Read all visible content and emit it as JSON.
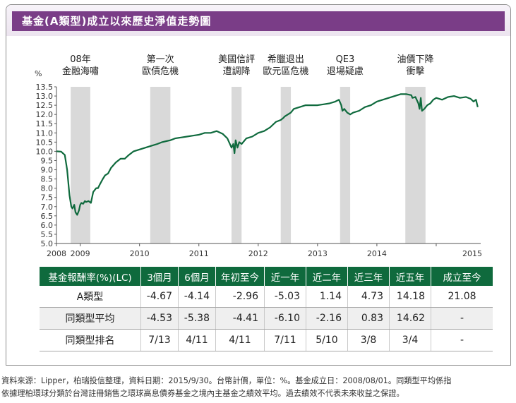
{
  "title": "基金(A類型)成立以來歷史淨值走勢圖",
  "chart_data": {
    "type": "line",
    "title": "基金(A類型)成立以來歷史淨值走勢圖",
    "y_unit": "%",
    "ylim": [
      5.0,
      13.5
    ],
    "y_ticks": [
      "13.5",
      "13.0",
      "12.5",
      "12.0",
      "11.5",
      "11.0",
      "10.5",
      "10.0",
      "9.5",
      "9.0",
      "8.5",
      "8.0",
      "7.5",
      "7.0",
      "6.5",
      "6.0",
      "5.5",
      "5.0"
    ],
    "x_ticks": [
      "2008",
      "2009",
      "2010",
      "2011",
      "2012",
      "2013",
      "2014",
      "2015"
    ],
    "xlim": [
      2008.6,
      2015.75
    ],
    "grid": false,
    "line_color": "#0f6a3d",
    "band_color": "#d9d9d9",
    "events": [
      {
        "lines": [
          "08年",
          "金融海嘯"
        ],
        "start": 2008.84,
        "end": 2009.17
      },
      {
        "lines": [
          "第一次",
          "歐債危機"
        ],
        "start": 2010.18,
        "end": 2010.52
      },
      {
        "lines": [
          "美國信評",
          "遭調降"
        ],
        "start": 2011.55,
        "end": 2011.72
      },
      {
        "lines": [
          "希臘退出",
          "歐元區危機"
        ],
        "start": 2012.38,
        "end": 2012.55
      },
      {
        "lines": [
          "QE3",
          "退場疑慮"
        ],
        "start": 2013.38,
        "end": 2013.55
      },
      {
        "lines": [
          "油價下降",
          "衝擊"
        ],
        "start": 2014.48,
        "end": 2014.82
      }
    ],
    "series": [
      {
        "x": [
          2008.6,
          2008.68,
          2008.74,
          2008.78,
          2008.8,
          2008.82,
          2008.85,
          2008.87,
          2008.9,
          2008.92,
          2008.95,
          2008.98,
          2009.0,
          2009.02,
          2009.05,
          2009.08,
          2009.1,
          2009.14,
          2009.18,
          2009.22,
          2009.27,
          2009.3,
          2009.33,
          2009.38,
          2009.42,
          2009.47,
          2009.52,
          2009.6,
          2009.68,
          2009.75,
          2009.82,
          2009.9,
          2010.0,
          2010.1,
          2010.2,
          2010.3,
          2010.38,
          2010.45,
          2010.52,
          2010.6,
          2010.7,
          2010.8,
          2010.9,
          2011.0,
          2011.1,
          2011.2,
          2011.3,
          2011.4,
          2011.48,
          2011.55,
          2011.58,
          2011.6,
          2011.62,
          2011.65,
          2011.68,
          2011.72,
          2011.8,
          2011.9,
          2012.0,
          2012.1,
          2012.2,
          2012.3,
          2012.38,
          2012.42,
          2012.45,
          2012.5,
          2012.55,
          2012.6,
          2012.7,
          2012.8,
          2012.9,
          2013.0,
          2013.1,
          2013.2,
          2013.3,
          2013.36,
          2013.4,
          2013.42,
          2013.45,
          2013.5,
          2013.55,
          2013.6,
          2013.7,
          2013.8,
          2013.9,
          2014.0,
          2014.1,
          2014.2,
          2014.3,
          2014.4,
          2014.5,
          2014.58,
          2014.6,
          2014.65,
          2014.7,
          2014.72,
          2014.74,
          2014.76,
          2014.8,
          2014.85,
          2014.9,
          2014.95,
          2015.0,
          2015.1,
          2015.2,
          2015.3,
          2015.4,
          2015.5,
          2015.58,
          2015.63,
          2015.67,
          2015.7
        ],
        "values": [
          10.0,
          9.98,
          9.8,
          9.0,
          8.3,
          7.6,
          7.0,
          6.9,
          7.1,
          6.7,
          6.55,
          6.8,
          7.1,
          7.2,
          7.15,
          7.3,
          7.25,
          7.3,
          7.2,
          7.8,
          8.0,
          8.0,
          8.2,
          8.5,
          8.7,
          8.8,
          9.1,
          9.4,
          9.6,
          9.6,
          9.8,
          10.0,
          10.1,
          10.2,
          10.3,
          10.4,
          10.5,
          10.55,
          10.6,
          10.7,
          10.75,
          10.8,
          10.85,
          10.9,
          11.0,
          11.0,
          11.1,
          10.95,
          10.7,
          10.2,
          10.4,
          9.9,
          10.6,
          10.2,
          10.5,
          10.4,
          10.7,
          10.8,
          11.0,
          11.1,
          11.3,
          11.6,
          11.7,
          11.8,
          11.9,
          12.0,
          12.1,
          12.3,
          12.4,
          12.5,
          12.5,
          12.5,
          12.55,
          12.6,
          12.7,
          12.8,
          12.5,
          12.2,
          12.3,
          12.1,
          12.0,
          12.1,
          12.2,
          12.4,
          12.5,
          12.7,
          12.8,
          12.9,
          13.0,
          13.1,
          13.1,
          13.05,
          12.9,
          12.95,
          12.6,
          12.3,
          12.9,
          12.2,
          12.3,
          12.5,
          12.6,
          12.8,
          12.9,
          12.8,
          12.95,
          13.0,
          12.9,
          12.95,
          12.85,
          12.7,
          12.8,
          12.4
        ]
      }
    ]
  },
  "table": {
    "headers": [
      "基金報酬率(%)(LC)",
      "3個月",
      "6個月",
      "年初至今",
      "近一年",
      "近二年",
      "近三年",
      "近五年",
      "成立至今"
    ],
    "rows": [
      {
        "label": "A類型",
        "values": [
          "-4.67",
          "-4.14",
          "-2.96",
          "-5.03",
          "1.14",
          "4.73",
          "14.18",
          "21.08"
        ]
      },
      {
        "label": "同類型平均",
        "values": [
          "-4.53",
          "-5.38",
          "-4.41",
          "-6.10",
          "-2.16",
          "0.83",
          "14.62",
          "-"
        ]
      },
      {
        "label": "同類型排名",
        "values": [
          "7/13",
          "4/11",
          "4/11",
          "7/11",
          "5/10",
          "3/8",
          "3/4",
          "-"
        ]
      }
    ]
  },
  "footnote": {
    "line1": "資料來源：Lipper，柏瑞投信整理，資料日期：2015/9/30。台幣計價，單位：%。基金成立日：2008/08/01。同類型平均係指",
    "line2": "依據理柏環球分類於台灣註冊銷售之環球高息債券基金之境內主基金之績效平均。過去績效不代表未來收益之保證。"
  }
}
